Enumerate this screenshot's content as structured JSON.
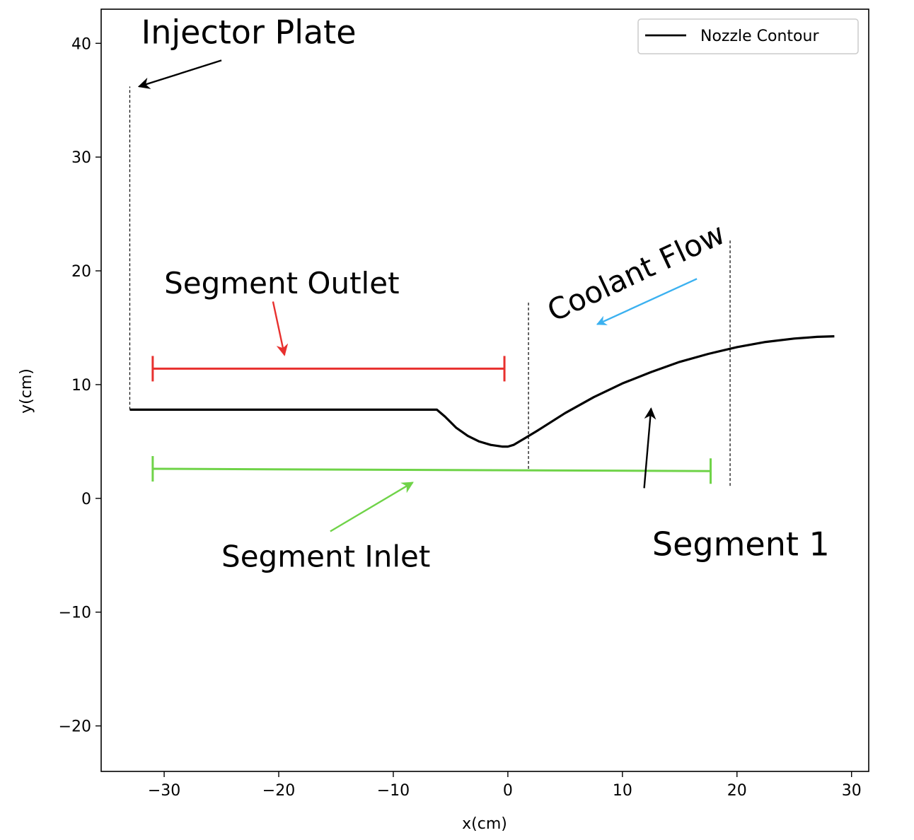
{
  "chart_data": {
    "type": "line",
    "xlabel": "x(cm)",
    "ylabel": "y(cm)",
    "xlim": [
      -35.5,
      31.5
    ],
    "ylim": [
      -24,
      43
    ],
    "xticks": [
      -30,
      -20,
      -10,
      0,
      10,
      20,
      30
    ],
    "xtick_labels": [
      "−30",
      "−20",
      "−10",
      "0",
      "10",
      "20",
      "30"
    ],
    "yticks": [
      -20,
      -10,
      0,
      10,
      20,
      30,
      40
    ],
    "ytick_labels": [
      "−20",
      "−10",
      "0",
      "10",
      "20",
      "30",
      "40"
    ],
    "grid": false,
    "legend": {
      "placement": "top-right",
      "entries": [
        "Nozzle Contour"
      ]
    },
    "series": [
      {
        "name": "Nozzle Contour",
        "color": "#000000",
        "x": [
          -33,
          -6.2,
          -5.5,
          -4.5,
          -3.5,
          -2.5,
          -1.5,
          -0.5,
          0,
          0.5,
          1.5,
          2.5,
          5,
          7.5,
          10,
          12.5,
          15,
          17.5,
          20,
          22.5,
          25,
          27,
          28.5
        ],
        "y": [
          7.8,
          7.8,
          7.2,
          6.2,
          5.5,
          5.0,
          4.7,
          4.55,
          4.55,
          4.7,
          5.3,
          5.9,
          7.5,
          8.9,
          10.1,
          11.1,
          12.0,
          12.7,
          13.3,
          13.75,
          14.05,
          14.2,
          14.25
        ]
      }
    ],
    "vlines": [
      {
        "x": -33,
        "y_from": 7.8,
        "y_to": 36.2,
        "style": "dashed",
        "color": "#000000"
      },
      {
        "x": 1.8,
        "y_from": 2.6,
        "y_to": 17.3,
        "style": "dashed",
        "color": "#000000"
      },
      {
        "x": 19.4,
        "y_from": 1.1,
        "y_to": 22.7,
        "style": "dashed",
        "color": "#000000"
      }
    ],
    "ranges": [
      {
        "x_from": -31,
        "x_to": -0.3,
        "y": 11.4,
        "color": "#e8302e"
      },
      {
        "x_from": -31,
        "x_to": 17.7,
        "y_from": 2.6,
        "y_to": 2.4,
        "color": "#6fd348"
      }
    ],
    "annotations": [
      {
        "text": "Injector Plate",
        "color": "#000000",
        "text_at": [
          -32,
          40
        ],
        "arrow_from": [
          -25,
          38.5
        ],
        "arrow_to": [
          -32.2,
          36.2
        ]
      },
      {
        "text": "Segment Outlet",
        "color": "#000000",
        "text_at": [
          -30,
          18
        ],
        "arrow_from": [
          -20.5,
          17.3
        ],
        "arrow_to": [
          -19.5,
          12.6
        ],
        "arrow_color": "#e8302e"
      },
      {
        "text": "Segment Inlet",
        "color": "#000000",
        "text_at": [
          -25,
          -6
        ],
        "arrow_from": [
          -15.5,
          -2.9
        ],
        "arrow_to": [
          -8.3,
          1.4
        ],
        "arrow_color": "#6fd348"
      },
      {
        "text": "Coolant Flow",
        "color": "#3bb1f0",
        "text_at": [
          4,
          15.5
        ],
        "rotation": -25,
        "arrow_from": [
          16.5,
          19.3
        ],
        "arrow_to": [
          7.8,
          15.3
        ],
        "arrow_color": "#3bb1f0"
      },
      {
        "text": "Segment 1",
        "color": "#000000",
        "text_at": [
          12.6,
          -5
        ],
        "arrow_from": [
          11.9,
          0.9
        ],
        "arrow_to": [
          12.5,
          7.9
        ]
      }
    ]
  }
}
